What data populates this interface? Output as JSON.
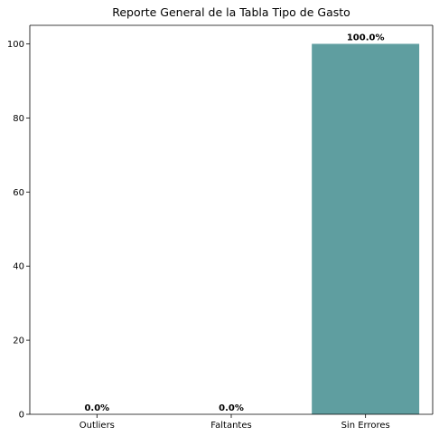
{
  "chart_data": {
    "type": "bar",
    "title": "Reporte General de la Tabla Tipo de Gasto",
    "categories": [
      "Outliers",
      "Faltantes",
      "Sin Errores"
    ],
    "values": [
      0,
      0,
      100
    ],
    "value_labels": [
      "0.0%",
      "0.0%",
      "100.0%"
    ],
    "xlabel": "",
    "ylabel": "",
    "ylim": [
      0,
      105
    ],
    "yticks": [
      0,
      20,
      40,
      60,
      80,
      100
    ],
    "grid": false,
    "bar_color": "#5f9ea0"
  }
}
